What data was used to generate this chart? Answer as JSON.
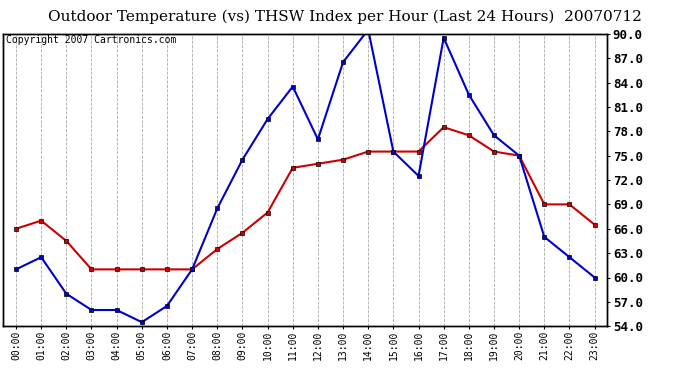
{
  "title": "Outdoor Temperature (vs) THSW Index per Hour (Last 24 Hours)  20070712",
  "copyright": "Copyright 2007 Cartronics.com",
  "hours": [
    "00:00",
    "01:00",
    "02:00",
    "03:00",
    "04:00",
    "05:00",
    "06:00",
    "07:00",
    "08:00",
    "09:00",
    "10:00",
    "11:00",
    "12:00",
    "13:00",
    "14:00",
    "15:00",
    "16:00",
    "17:00",
    "18:00",
    "19:00",
    "20:00",
    "21:00",
    "22:00",
    "23:00"
  ],
  "temp": [
    66.0,
    67.0,
    64.5,
    61.0,
    61.0,
    61.0,
    61.0,
    61.0,
    63.5,
    65.5,
    68.0,
    73.5,
    74.0,
    74.5,
    75.5,
    75.5,
    75.5,
    78.5,
    77.5,
    75.5,
    75.0,
    69.0,
    69.0,
    66.5
  ],
  "thsw": [
    61.0,
    62.5,
    58.0,
    56.0,
    56.0,
    54.5,
    56.5,
    61.0,
    68.5,
    74.5,
    79.5,
    83.5,
    77.0,
    86.5,
    90.5,
    75.5,
    72.5,
    89.5,
    82.5,
    77.5,
    75.0,
    65.0,
    62.5,
    60.0
  ],
  "ylim": [
    54.0,
    90.0
  ],
  "yticks": [
    54.0,
    57.0,
    60.0,
    63.0,
    66.0,
    69.0,
    72.0,
    75.0,
    78.0,
    81.0,
    84.0,
    87.0,
    90.0
  ],
  "temp_color": "#cc0000",
  "thsw_color": "#0000cc",
  "bg_color": "#ffffff",
  "grid_color": "#aaaaaa",
  "title_fontsize": 11,
  "copyright_fontsize": 7,
  "tick_fontsize": 7,
  "ytick_fontsize": 9
}
